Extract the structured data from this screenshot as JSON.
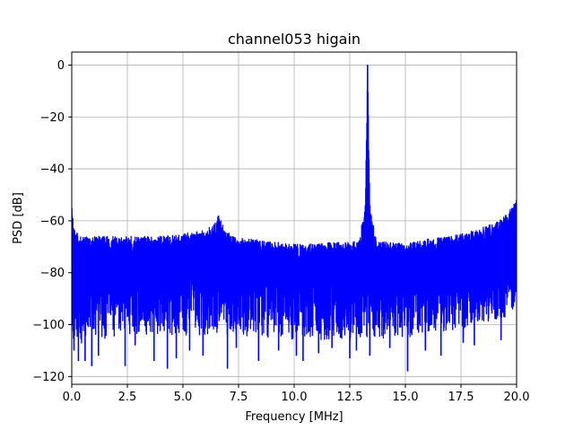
{
  "chart_data": {
    "type": "line",
    "title": "channel053 higain",
    "xlabel": "Frequency [MHz]",
    "ylabel": "PSD [dB]",
    "xlim": [
      0,
      20
    ],
    "ylim": [
      -123,
      5
    ],
    "xticks": [
      0.0,
      2.5,
      5.0,
      7.5,
      10.0,
      12.5,
      15.0,
      17.5,
      20.0
    ],
    "xtick_labels": [
      "0.0",
      "2.5",
      "5.0",
      "7.5",
      "10.0",
      "12.5",
      "15.0",
      "17.5",
      "20.0"
    ],
    "yticks": [
      0,
      -20,
      -40,
      -60,
      -80,
      -100,
      -120
    ],
    "ytick_labels": [
      "0",
      "−20",
      "−40",
      "−60",
      "−80",
      "−100",
      "−120"
    ],
    "grid": true,
    "series": [
      {
        "color": "#0000ff",
        "upper_envelope": {
          "x": [
            0.0,
            0.1,
            0.3,
            1.0,
            2.0,
            3.0,
            4.0,
            5.0,
            5.8,
            6.3,
            6.6,
            6.8,
            7.2,
            8.0,
            9.0,
            10.0,
            11.0,
            12.0,
            12.9,
            13.2,
            13.3,
            13.4,
            13.7,
            14.0,
            15.0,
            16.0,
            17.0,
            18.0,
            19.0,
            19.5,
            20.0
          ],
          "y": [
            -55,
            -62,
            -66,
            -66,
            -66,
            -66,
            -66,
            -65,
            -64,
            -62,
            -58,
            -62,
            -66,
            -67,
            -68,
            -69,
            -69,
            -68,
            -68,
            -54,
            0,
            -54,
            -68,
            -68,
            -69,
            -67,
            -66,
            -64,
            -61,
            -58,
            -52
          ]
        },
        "mean_level": {
          "x": [
            0.0,
            2.5,
            5.0,
            6.6,
            7.5,
            10.0,
            13.3,
            15.0,
            17.5,
            20.0
          ],
          "y": [
            -82,
            -82,
            -81,
            -78,
            -82,
            -83,
            -83,
            -83,
            -82,
            -80
          ]
        },
        "lower_envelope": {
          "x": [
            0.0,
            2.5,
            5.0,
            7.5,
            10.0,
            12.5,
            15.0,
            17.5,
            20.0
          ],
          "y": [
            -108,
            -104,
            -104,
            -104,
            -106,
            -106,
            -105,
            -102,
            -96
          ]
        },
        "deep_dips": {
          "x": [
            0.1,
            0.3,
            0.6,
            0.9,
            1.2,
            2.4,
            2.85,
            3.7,
            4.3,
            4.7,
            5.3,
            5.9,
            7.0,
            7.4,
            8.4,
            9.3,
            10.1,
            10.4,
            11.1,
            11.7,
            12.5,
            12.8,
            13.4,
            14.3,
            15.1,
            15.9,
            16.6,
            17.6,
            18.1,
            19.3
          ],
          "y": [
            -110,
            -114,
            -114,
            -116,
            -112,
            -116,
            -108,
            -114,
            -117,
            -113,
            -110,
            -112,
            -117,
            -109,
            -114,
            -110,
            -112,
            -114,
            -111,
            -109,
            -113,
            -110,
            -112,
            -109,
            -118,
            -110,
            -112,
            -107,
            -108,
            -106
          ]
        }
      }
    ]
  }
}
